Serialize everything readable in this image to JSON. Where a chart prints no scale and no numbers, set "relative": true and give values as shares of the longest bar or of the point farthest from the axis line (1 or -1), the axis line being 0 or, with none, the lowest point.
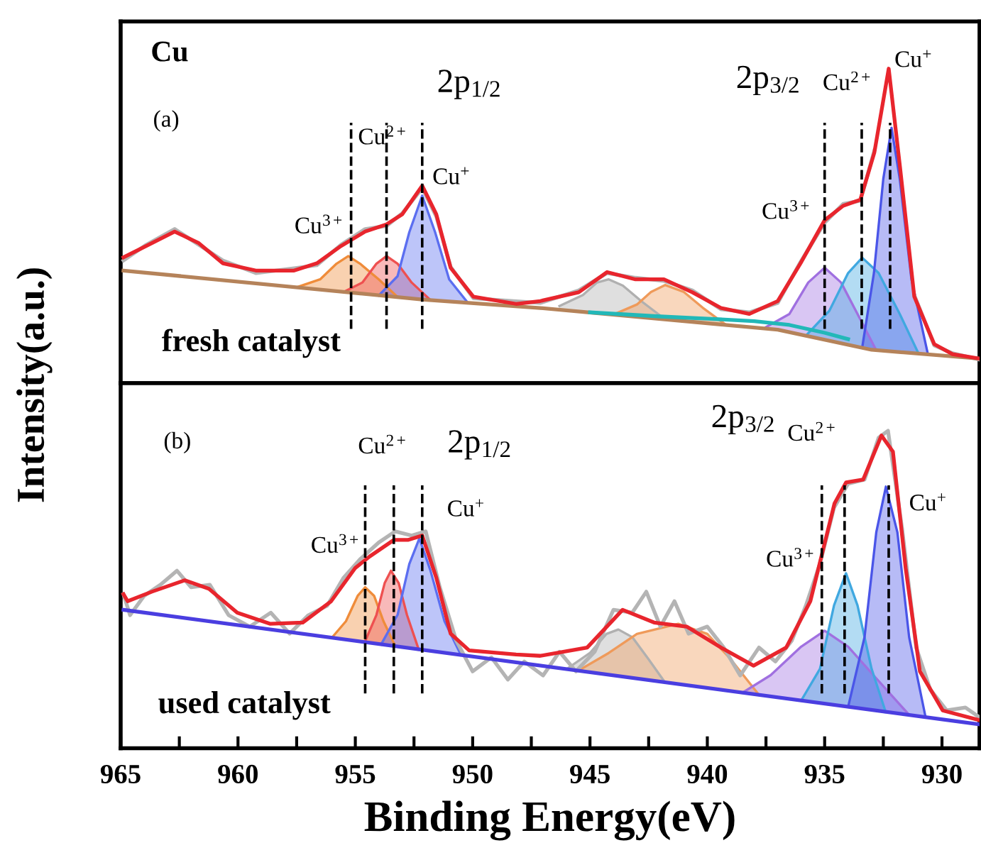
{
  "chart_data": [
    {
      "type": "line",
      "relative": true,
      "ylabel": "Intensity(a.u.)",
      "xlim": [
        965,
        928.4
      ],
      "tick_labels": false,
      "annotations": [
        "Cu",
        "(a)",
        "fresh catalyst",
        "Cu$^{3+}$",
        "Cu$^{2+}$",
        "Cu$^{+}$",
        "2p$_{1/2}$",
        "2p$_{3/2}$",
        "Cu$^{3+}$",
        "Cu$^{2+}$",
        "Cu$^{+}$"
      ],
      "ref_lines": [
        {
          "axis": "x",
          "value": 955.18,
          "color": "#000000",
          "line_style": "dashed"
        },
        {
          "axis": "x",
          "value": 953.67,
          "color": "#000000",
          "line_style": "dashed"
        },
        {
          "axis": "x",
          "value": 952.15,
          "color": "#000000",
          "line_style": "dashed"
        },
        {
          "axis": "x",
          "value": 935.0,
          "color": "#000000",
          "line_style": "dashed"
        },
        {
          "axis": "x",
          "value": 933.42,
          "color": "#000000",
          "line_style": "dashed"
        },
        {
          "axis": "x",
          "value": 932.21,
          "color": "#000000",
          "line_style": "dashed"
        }
      ],
      "series": [
        {
          "color": "#b4b4b4",
          "x": [
            964.88,
            963.91,
            962.7,
            961.67,
            960.64,
            959.24,
            957.61,
            956.64,
            955.61,
            954.58,
            953.67,
            953.0,
            952.15,
            951.55,
            950.94,
            949.97,
            948.15,
            947.12,
            945.48,
            944.27,
            943.06,
            941.85,
            940.64,
            939.42,
            938.21,
            937.0,
            936.03,
            935.0,
            934.21,
            933.48,
            932.88,
            932.27,
            931.79,
            931.18,
            930.33,
            929.55,
            928.4
          ],
          "values": [
            0.39,
            0.44,
            0.49,
            0.44,
            0.39,
            0.35,
            0.365,
            0.375,
            0.44,
            0.49,
            0.5,
            0.54,
            0.62,
            0.53,
            0.37,
            0.27,
            0.26,
            0.255,
            0.295,
            0.35,
            0.335,
            0.325,
            0.295,
            0.235,
            0.225,
            0.255,
            0.385,
            0.51,
            0.57,
            0.58,
            0.74,
            null,
            null,
            0.28,
            0.12,
            0.095,
            0.075
          ]
        },
        {
          "color": "#b5835a",
          "x": [
            964.88,
            952.15,
            947.12,
            937.0,
            933.0,
            928.4
          ],
          "values": [
            0.358,
            0.266,
            0.239,
            0.17,
            0.106,
            0.078
          ]
        },
        {
          "type": "area",
          "color": "#ef8c3a",
          "x": [
            957.5,
            956.5,
            955.8,
            955.3,
            954.8,
            954.0,
            953.2
          ],
          "values": [
            0.305,
            0.33,
            0.38,
            0.404,
            0.38,
            0.33,
            0.274
          ]
        },
        {
          "type": "area",
          "color": "#ee5050",
          "x": [
            955.5,
            954.7,
            954.1,
            953.67,
            953.2,
            952.6,
            951.8
          ],
          "values": [
            0.29,
            0.32,
            0.38,
            0.404,
            0.38,
            0.32,
            0.264
          ]
        },
        {
          "type": "area",
          "color": "#5b6ef0",
          "x": [
            954.0,
            953.2,
            952.7,
            952.15,
            951.6,
            951.0,
            950.2
          ],
          "values": [
            0.279,
            0.34,
            0.48,
            0.596,
            0.48,
            0.33,
            0.255
          ]
        },
        {
          "type": "area",
          "color": "#b0b0b0",
          "x": [
            946.3,
            945.3,
            944.7,
            944.2,
            943.6,
            942.8,
            941.8
          ],
          "values": [
            0.245,
            0.28,
            0.32,
            0.33,
            0.31,
            0.26,
            0.203
          ]
        },
        {
          "type": "area",
          "color": "#ef9a5a",
          "x": [
            944.0,
            943.0,
            942.4,
            941.8,
            941.0,
            940.2,
            939.2
          ],
          "values": [
            0.218,
            0.25,
            0.29,
            0.312,
            0.29,
            0.24,
            0.185
          ]
        },
        {
          "type": "area",
          "color": "#a070e0",
          "x": [
            937.5,
            936.5,
            935.7,
            935.0,
            934.3,
            933.6,
            932.8
          ],
          "values": [
            0.178,
            0.22,
            0.32,
            0.367,
            0.32,
            0.22,
            0.104
          ]
        },
        {
          "type": "area",
          "color": "#40a8e0",
          "x": [
            935.8,
            934.8,
            934.0,
            933.4,
            932.7,
            931.8,
            931.0
          ],
          "values": [
            0.151,
            0.23,
            0.35,
            0.399,
            0.35,
            0.22,
            0.094
          ]
        },
        {
          "type": "area",
          "color": "#4a55e8",
          "x": [
            933.4,
            932.9,
            932.5,
            932.15,
            931.8,
            931.3,
            930.6
          ],
          "values": [
            0.113,
            0.35,
            0.65,
            0.812,
            0.65,
            0.33,
            0.092
          ]
        },
        {
          "color": "#22b8b8",
          "x": [
            945.0,
            942.0,
            940.0,
            938.0,
            936.5,
            935.0,
            934.0
          ],
          "values": [
            0.225,
            0.212,
            0.205,
            0.197,
            0.185,
            0.16,
            0.14
          ]
        },
        {
          "color": "#e8252d",
          "x": [
            964.88,
            963.91,
            962.7,
            961.67,
            960.64,
            959.24,
            957.61,
            956.64,
            955.61,
            954.58,
            953.67,
            953.0,
            952.15,
            951.55,
            950.94,
            949.97,
            948.15,
            947.12,
            945.48,
            944.27,
            943.06,
            941.85,
            940.64,
            939.42,
            938.21,
            937.0,
            936.03,
            935.0,
            934.21,
            933.48,
            932.88,
            932.27,
            931.79,
            931.18,
            930.33,
            929.55,
            928.4
          ],
          "values": [
            0.4,
            0.436,
            0.482,
            0.445,
            0.381,
            0.358,
            0.358,
            0.381,
            0.436,
            0.482,
            0.505,
            0.537,
            0.628,
            0.537,
            0.367,
            0.275,
            0.252,
            0.261,
            0.289,
            0.353,
            0.33,
            0.33,
            0.289,
            0.239,
            0.22,
            0.261,
            0.381,
            0.518,
            0.564,
            0.583,
            0.734,
            1.0,
            0.688,
            0.275,
            0.124,
            0.092,
            0.078
          ]
        }
      ]
    },
    {
      "type": "line",
      "relative": true,
      "xlabel": "Binding Energy(eV)",
      "xlim": [
        965,
        928.4
      ],
      "tick_labels": "x",
      "xticks": [
        965,
        {
          "value": 962.5,
          "label": null
        },
        960,
        {
          "value": 957.5,
          "label": null
        },
        955,
        {
          "value": 952.5,
          "label": null
        },
        950,
        {
          "value": 947.5,
          "label": null
        },
        945,
        {
          "value": 942.5,
          "label": null
        },
        940,
        {
          "value": 937.5,
          "label": null
        },
        935,
        {
          "value": 932.5,
          "label": null
        },
        930
      ],
      "annotations": [
        "(b)",
        "used catalyst",
        "Cu$^{3+}$",
        "Cu$^{2+}$",
        "2p$_{1/2}$",
        "Cu$^{+}$",
        "2p$_{3/2}$",
        "Cu$^{2+}$",
        "Cu$^{3+}$",
        "Cu$^{+}$"
      ],
      "ref_lines": [
        {
          "axis": "x",
          "value": 954.58,
          "color": "#000000",
          "line_style": "dashed"
        },
        {
          "axis": "x",
          "value": 953.36,
          "color": "#000000",
          "line_style": "dashed"
        },
        {
          "axis": "x",
          "value": 952.15,
          "color": "#000000",
          "line_style": "dashed"
        },
        {
          "axis": "x",
          "value": 935.12,
          "color": "#000000",
          "line_style": "dashed"
        },
        {
          "axis": "x",
          "value": 934.15,
          "color": "#000000",
          "line_style": "dashed"
        },
        {
          "axis": "x",
          "value": 932.27,
          "color": "#000000",
          "line_style": "dashed"
        }
      ],
      "series": [
        {
          "color": "#b4b4b4",
          "x": [
            964.88,
            964.6,
            964.0,
            963.3,
            962.6,
            962.0,
            961.2,
            960.4,
            959.5,
            958.6,
            957.8,
            957.0,
            956.2,
            955.5,
            954.8,
            954.0,
            953.3,
            952.6,
            952.0,
            951.4,
            950.7,
            950.0,
            949.2,
            948.5,
            947.8,
            947.0,
            946.3,
            945.6,
            944.8,
            944.0,
            943.2,
            942.6,
            942.0,
            941.4,
            940.8,
            940.0,
            939.3,
            938.6,
            937.8,
            937.1,
            936.4,
            935.8,
            935.2,
            934.6,
            934.0,
            933.3,
            932.7,
            932.3,
            931.7,
            931.1,
            930.5,
            929.8,
            929.0,
            928.4
          ],
          "values": [
            0.485,
            0.419,
            0.48,
            0.515,
            0.559,
            0.507,
            0.515,
            0.419,
            0.383,
            0.427,
            0.361,
            0.419,
            0.449,
            0.537,
            0.595,
            0.648,
            0.683,
            0.67,
            0.683,
            0.507,
            0.339,
            0.242,
            0.286,
            0.216,
            0.273,
            0.229,
            0.304,
            0.242,
            0.304,
            0.436,
            0.427,
            0.493,
            0.383,
            0.463,
            0.361,
            0.383,
            0.317,
            0.229,
            0.317,
            0.273,
            0.339,
            0.449,
            0.581,
            0.758,
            0.833,
            0.846,
            0.978,
            1.0,
            0.692,
            0.317,
            0.185,
            0.119,
            0.128,
            0.097
          ]
        },
        {
          "color": "#4a3ee0",
          "x": [
            964.88,
            928.4
          ],
          "values": [
            0.436,
            0.075
          ]
        },
        {
          "type": "area",
          "color": "#ef8c3a",
          "x": [
            956.0,
            955.4,
            954.9,
            954.58,
            954.2,
            953.8,
            953.3
          ],
          "values": [
            0.348,
            0.4,
            0.48,
            0.507,
            0.48,
            0.4,
            0.322
          ]
        },
        {
          "type": "area",
          "color": "#ee5050",
          "x": [
            954.6,
            954.1,
            953.75,
            953.48,
            953.15,
            952.8,
            952.3
          ],
          "values": [
            0.334,
            0.42,
            0.52,
            0.559,
            0.52,
            0.42,
            0.311
          ]
        },
        {
          "type": "area",
          "color": "#5b6ef0",
          "x": [
            953.9,
            953.2,
            952.7,
            952.27,
            951.8,
            951.2,
            950.5
          ],
          "values": [
            0.327,
            0.42,
            0.58,
            0.661,
            0.56,
            0.4,
            0.294
          ]
        },
        {
          "type": "area",
          "color": "#b0b0b0",
          "x": [
            946.0,
            945.0,
            944.3,
            943.79,
            943.2,
            942.5,
            941.8
          ],
          "values": [
            0.249,
            0.3,
            0.36,
            0.374,
            0.35,
            0.28,
            0.207
          ]
        },
        {
          "type": "area",
          "color": "#ef9a5a",
          "x": [
            945.5,
            944.2,
            943.0,
            941.24,
            940.0,
            939.0,
            937.8
          ],
          "values": [
            0.244,
            0.3,
            0.36,
            0.392,
            0.36,
            0.28,
            0.168
          ]
        },
        {
          "type": "area",
          "color": "#a070e0",
          "x": [
            938.5,
            937.3,
            936.0,
            935.0,
            934.0,
            932.8,
            931.4
          ],
          "values": [
            0.175,
            0.23,
            0.32,
            0.37,
            0.32,
            0.22,
            0.105
          ]
        },
        {
          "type": "area",
          "color": "#40a8e0",
          "x": [
            936.0,
            935.2,
            934.6,
            934.09,
            933.6,
            933.0,
            932.4
          ],
          "values": [
            0.15,
            0.25,
            0.45,
            0.551,
            0.45,
            0.25,
            0.114
          ]
        },
        {
          "type": "area",
          "color": "#4a55e8",
          "x": [
            934.0,
            933.3,
            932.8,
            932.39,
            931.9,
            931.4,
            930.7
          ],
          "values": [
            0.13,
            0.35,
            0.68,
            0.824,
            0.68,
            0.35,
            0.098
          ]
        },
        {
          "color": "#e8252d",
          "x": [
            964.88,
            964.7,
            963.67,
            962.27,
            961.24,
            960.03,
            958.64,
            957.24,
            956.03,
            955.0,
            954.39,
            953.36,
            952.76,
            952.15,
            951.55,
            950.94,
            950.15,
            948.15,
            947.12,
            945.12,
            943.61,
            942.27,
            940.88,
            939.42,
            938.03,
            936.64,
            935.61,
            934.58,
            934.09,
            933.36,
            932.58,
            932.09,
            931.55,
            930.94,
            929.97,
            928.4
          ],
          "values": [
            0.485,
            0.463,
            0.493,
            0.529,
            0.502,
            0.427,
            0.392,
            0.396,
            0.463,
            0.568,
            0.604,
            0.656,
            0.656,
            0.67,
            0.537,
            0.361,
            0.308,
            0.295,
            0.291,
            0.317,
            0.436,
            0.396,
            0.383,
            0.317,
            0.26,
            0.317,
            0.463,
            0.771,
            0.837,
            0.846,
            0.985,
            0.934,
            0.568,
            0.242,
            0.119,
            0.088
          ]
        }
      ]
    }
  ]
}
